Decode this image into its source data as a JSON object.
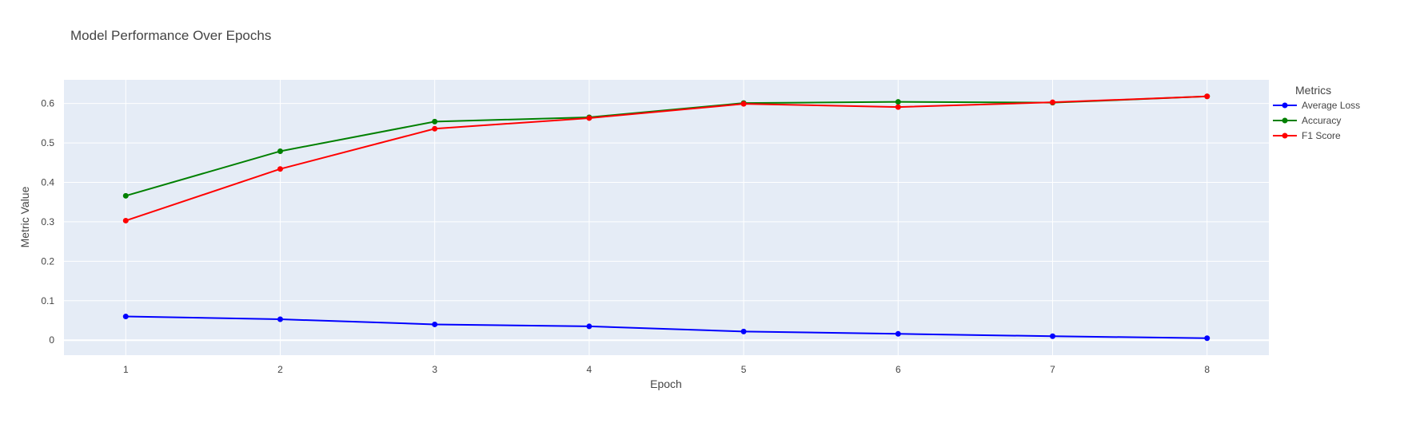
{
  "chart_data": {
    "type": "line",
    "title": "Model Performance Over Epochs",
    "xlabel": "Epoch",
    "ylabel": "Metric Value",
    "x": [
      1,
      2,
      3,
      4,
      5,
      6,
      7,
      8
    ],
    "xlim": [
      0.6,
      8.4
    ],
    "ylim": [
      -0.038,
      0.66
    ],
    "xticks": [
      1,
      2,
      3,
      4,
      5,
      6,
      7,
      8
    ],
    "yticks": [
      0,
      0.1,
      0.2,
      0.3,
      0.4,
      0.5,
      0.6
    ],
    "grid": true,
    "legend": {
      "title": "Metrics",
      "position": "top-right-outside"
    },
    "series": [
      {
        "name": "Average Loss",
        "color": "#0000ff",
        "values": [
          0.06,
          0.053,
          0.04,
          0.035,
          0.022,
          0.016,
          0.01,
          0.005
        ]
      },
      {
        "name": "Accuracy",
        "color": "#008000",
        "values": [
          0.366,
          0.479,
          0.554,
          0.565,
          0.601,
          0.604,
          0.602,
          0.618
        ]
      },
      {
        "name": "F1 Score",
        "color": "#ff0000",
        "values": [
          0.303,
          0.434,
          0.536,
          0.563,
          0.599,
          0.591,
          0.603,
          0.618
        ]
      }
    ]
  }
}
